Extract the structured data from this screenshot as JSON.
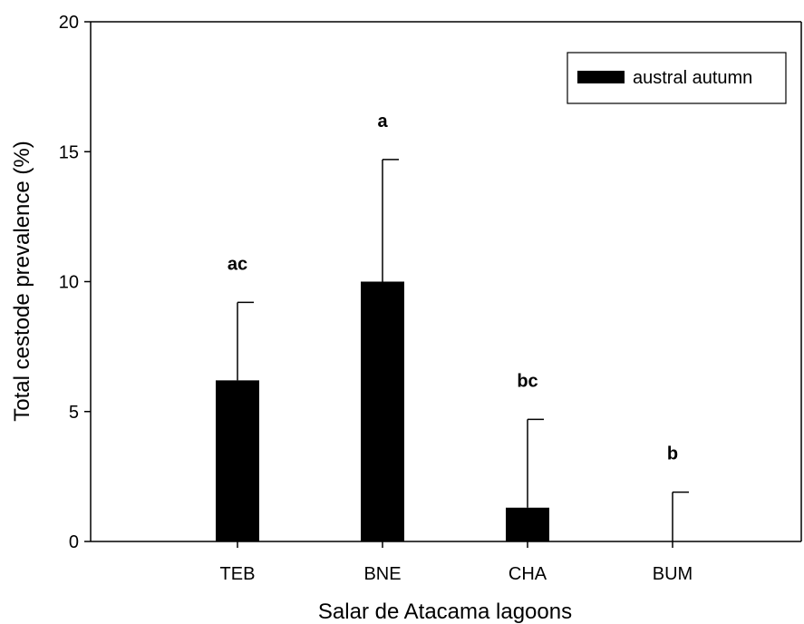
{
  "chart_data": {
    "type": "bar",
    "xlabel": "Salar de Atacama lagoons",
    "ylabel": "Total cestode prevalence (%)",
    "ylim": [
      0,
      20
    ],
    "yticks": [
      0,
      5,
      10,
      15,
      20
    ],
    "categories": [
      "TEB",
      "BNE",
      "CHA",
      "BUM"
    ],
    "series": [
      {
        "name": "austral autumn",
        "values": [
          6.2,
          10.0,
          1.3,
          0.0
        ],
        "errors": [
          3.0,
          4.7,
          3.4,
          1.9
        ],
        "significance": [
          "ac",
          "a",
          "bc",
          "b"
        ],
        "color": "#000000"
      }
    ],
    "legend_position": "top-right",
    "grid": false
  }
}
